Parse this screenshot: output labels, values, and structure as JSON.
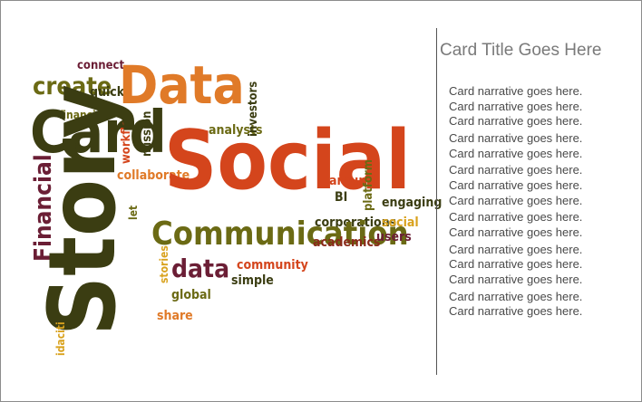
{
  "card": {
    "title": "Card Title Goes Here",
    "narrative": [
      "Card narrative goes here.",
      "Card narrative goes here.",
      "Card narrative goes here.",
      "Card narrative goes here.",
      "Card narrative goes here.",
      "Card narrative goes here.",
      "Card narrative goes here.",
      "Card narrative goes here.",
      "Card narrative goes here.",
      "Card narrative goes here.",
      "Card narrative goes here.",
      "Card narrative goes here.",
      "Card narrative goes here.",
      "Card narrative goes here.",
      "Card narrative goes here."
    ]
  },
  "word_cloud": {
    "words": {
      "connect": "connect",
      "create": "create",
      "quick": "quick",
      "data_big": "Data",
      "financial": "financial",
      "card": "Card",
      "workflow": "workflow",
      "mission": "mission",
      "collaborate": "collaborate",
      "analysts": "analysts",
      "investors": "investors",
      "social_big": "Social",
      "financial_big": "Financial",
      "story": "Story",
      "let": "let",
      "around": "around",
      "bi": "BI",
      "platform": "platform",
      "engaging": "engaging",
      "corporations": "corporations",
      "social": "social",
      "communication": "Communication",
      "academics": "academics",
      "users": "users",
      "stories": "stories",
      "data": "data",
      "community": "community",
      "simple": "simple",
      "global": "global",
      "share": "share",
      "idaciti": "idaciti"
    },
    "colors": {
      "dark_olive": "#3b3d12",
      "orange_red": "#d4451c",
      "orange": "#e07a28",
      "maroon": "#6b1e35",
      "olive": "#6b6a14",
      "gold": "#d9a21e",
      "dark_red": "#8a2a1a"
    }
  }
}
